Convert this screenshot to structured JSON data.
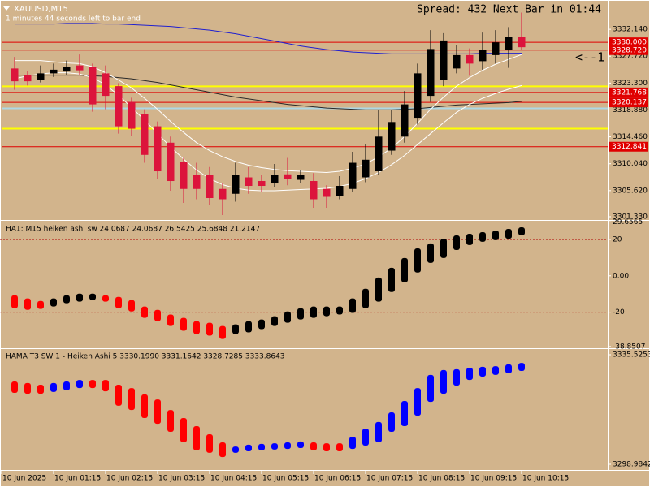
{
  "header": {
    "symbol": "XAUUSD,M15",
    "timer": "1 minutes 44 seconds left to bar end",
    "spread": "Spread: 432 Next Bar in 01:44",
    "annotation": "<--1"
  },
  "chart_data": [
    {
      "type": "candlestick",
      "up_color": "#000000",
      "down_color": "#dc143c",
      "open": [
        null,
        3325.7,
        3324.6,
        3323.8,
        3324.9,
        3325.2,
        3326.2,
        3325.9,
        3324.9,
        3322.8,
        3320.2,
        3318.2,
        3316.2,
        3313.5,
        3310.4,
        3308.2,
        3308.2,
        3305.9,
        3305.1,
        3307.8,
        3307.2,
        3306.8,
        3308.3,
        3307.4,
        3307.2,
        3305.9,
        3304.8,
        3305.9,
        3307.8,
        3308.8,
        3312.2,
        3314.5,
        3317.6,
        3321.2,
        3323.8,
        3325.7,
        3327.9,
        3326.9,
        3327.9,
        3328.7,
        3330.9
      ],
      "high": [
        null,
        3327.6,
        3325.3,
        3326.2,
        3326.5,
        3327.0,
        3328.0,
        3326.5,
        3326.2,
        3323.3,
        3320.9,
        3319.0,
        3317.0,
        3314.5,
        3311.0,
        3310.2,
        3309.5,
        3306.8,
        3310.2,
        3309.5,
        3308.2,
        3310.0,
        3311.0,
        3309.0,
        3308.5,
        3306.5,
        3308.0,
        3312.0,
        3313.2,
        3318.9,
        3318.9,
        3322.0,
        3326.5,
        3332.0,
        3331.5,
        3329.5,
        3329.0,
        3331.6,
        3332.0,
        3332.5,
        3334.9
      ],
      "low": [
        null,
        3322.2,
        3322.9,
        3323.4,
        3324.3,
        3324.6,
        3324.6,
        3318.6,
        3319.0,
        3315.0,
        3314.6,
        3310.2,
        3307.5,
        3305.6,
        3303.6,
        3304.2,
        3303.2,
        3301.6,
        3303.8,
        3305.1,
        3305.4,
        3306.2,
        3306.5,
        3306.8,
        3302.8,
        3302.8,
        3304.2,
        3305.4,
        3307.0,
        3308.2,
        3311.5,
        3313.5,
        3316.5,
        3320.2,
        3322.8,
        3324.9,
        3324.5,
        3325.5,
        3326.5,
        3325.8,
        3328.7
      ],
      "close": [
        null,
        3323.6,
        3323.6,
        3324.9,
        3325.5,
        3326.0,
        3325.4,
        3319.8,
        3321.2,
        3316.2,
        3315.8,
        3311.5,
        3308.8,
        3307.2,
        3305.9,
        3305.9,
        3304.4,
        3304.2,
        3308.2,
        3306.4,
        3306.4,
        3308.2,
        3307.5,
        3308.2,
        3304.2,
        3304.6,
        3306.4,
        3310.2,
        3310.7,
        3314.5,
        3316.9,
        3319.8,
        3324.9,
        3328.9,
        3330.3,
        3327.9,
        3326.5,
        3328.7,
        3330.0,
        3330.9,
        3329.2
      ],
      "series": [
        {
          "color": "#2020d0",
          "values": [
            null,
            3333.0,
            3333.0,
            3333.0,
            3333.0,
            3333.1,
            3333.1,
            3333.1,
            3333.0,
            3333.0,
            3332.9,
            3332.8,
            3332.7,
            3332.6,
            3332.4,
            3332.2,
            3332.0,
            3331.7,
            3331.4,
            3331.0,
            3330.6,
            3330.2,
            3329.8,
            3329.4,
            3329.1,
            3328.8,
            3328.6,
            3328.4,
            3328.3,
            3328.2,
            3328.1,
            3328.1,
            3328.1,
            3328.1,
            3328.1,
            3328.1,
            3328.1,
            3328.2,
            3328.2,
            3328.2,
            3328.2
          ]
        },
        {
          "color": "#2a2a2a",
          "values": [
            null,
            3324.6,
            3324.6,
            3324.6,
            3324.6,
            3324.6,
            3324.6,
            3324.5,
            3324.4,
            3324.2,
            3324.0,
            3323.7,
            3323.4,
            3323.0,
            3322.6,
            3322.2,
            3321.8,
            3321.4,
            3321.0,
            3320.7,
            3320.4,
            3320.1,
            3319.8,
            3319.6,
            3319.4,
            3319.2,
            3319.1,
            3319.0,
            3318.9,
            3318.9,
            3318.9,
            3319.0,
            3319.1,
            3319.3,
            3319.5,
            3319.7,
            3319.8,
            3319.9,
            3320.0,
            3320.1,
            3320.3
          ]
        },
        {
          "color": "#ffffff",
          "values": [
            null,
            3327.0,
            3327.0,
            3327.0,
            3326.8,
            3326.6,
            3326.5,
            3326.0,
            3325.0,
            3323.8,
            3322.5,
            3320.8,
            3319.0,
            3317.0,
            3315.2,
            3313.5,
            3312.2,
            3311.2,
            3310.4,
            3309.8,
            3309.4,
            3309.1,
            3308.9,
            3308.8,
            3308.7,
            3308.6,
            3308.8,
            3309.3,
            3310.0,
            3311.2,
            3312.6,
            3314.5,
            3316.7,
            3319.0,
            3321.0,
            3322.8,
            3324.2,
            3325.4,
            3326.4,
            3327.2,
            3328.0
          ]
        },
        {
          "color": "#ffffff",
          "values": [
            null,
            3324.0,
            3324.5,
            3324.8,
            3325.0,
            3325.0,
            3324.8,
            3324.2,
            3323.0,
            3321.3,
            3319.3,
            3317.2,
            3315.0,
            3312.8,
            3310.8,
            3309.0,
            3307.6,
            3306.6,
            3306.0,
            3305.7,
            3305.6,
            3305.6,
            3305.7,
            3305.8,
            3305.9,
            3306.0,
            3306.3,
            3306.8,
            3307.6,
            3308.6,
            3309.9,
            3311.4,
            3313.2,
            3315.0,
            3316.8,
            3318.5,
            3319.8,
            3320.8,
            3321.6,
            3322.3,
            3322.9
          ]
        }
      ],
      "hlines": [
        {
          "value": 3330,
          "label": "3330.000",
          "color": "#e00000"
        },
        {
          "value": 3328.72,
          "label": "3328.720",
          "color": "#e00000"
        },
        {
          "value": 3321.768,
          "label": "3321.768",
          "color": "#e00000"
        },
        {
          "value": 3320.137,
          "label": "3320.137",
          "color": "#e00000"
        },
        {
          "value": 3312.841,
          "label": "3312.841",
          "color": "#e00000"
        },
        {
          "value": 3322.77,
          "color": "#ffff00"
        },
        {
          "value": 3315.81,
          "color": "#ffff00"
        },
        {
          "value": 3319.15,
          "color": "#add8e6"
        }
      ],
      "ylim": [
        3300.93,
        3336.56
      ],
      "yticks": [
        {
          "value": 3332.14,
          "label": "3332.140"
        },
        {
          "value": 3327.72,
          "label": "3327.720"
        },
        {
          "value": 3323.3,
          "label": "3323.300"
        },
        {
          "value": 3318.88,
          "label": "3318.880"
        },
        {
          "value": 3314.46,
          "label": "3314.460"
        },
        {
          "value": 3310.04,
          "label": "3310.040"
        },
        {
          "value": 3305.62,
          "label": "3305.620"
        },
        {
          "value": 3301.33,
          "label": "3301.330"
        }
      ]
    },
    {
      "type": "heiken_ashi",
      "title": "HA1: M15 heiken ashi sw 24.0687 24.0687 26.5425 25.6848 21.2147",
      "up_color": "#000000",
      "down_color": "#ff0000",
      "open": [
        null,
        -10.7,
        -12.4,
        -13.8,
        -16.9,
        -15.1,
        -14.2,
        -13.3,
        -10.7,
        -11.6,
        -13.3,
        -16.9,
        -18.7,
        -21.3,
        -23.1,
        -24.9,
        -25.8,
        -27.6,
        -32.0,
        -31.1,
        -29.3,
        -27.6,
        -25.8,
        -24.0,
        -23.1,
        -22.2,
        -21.3,
        -20.4,
        -17.8,
        -14.2,
        -8.9,
        -3.6,
        1.8,
        7.1,
        9.8,
        14.2,
        16.9,
        18.7,
        19.6,
        20.4,
        22.2
      ],
      "close": [
        null,
        -17.8,
        -18.7,
        -18.2,
        -12.4,
        -10.7,
        -9.8,
        -9.8,
        -14.2,
        -17.8,
        -19.6,
        -23.1,
        -24.9,
        -27.6,
        -30.2,
        -32.0,
        -32.9,
        -34.7,
        -26.7,
        -24.9,
        -24.0,
        -22.2,
        -19.6,
        -17.8,
        -16.9,
        -16.9,
        -16.9,
        -12.4,
        -7.1,
        -0.9,
        4.4,
        9.8,
        15.1,
        17.8,
        20.4,
        22.2,
        23.1,
        24.0,
        24.9,
        25.8,
        26.7
      ],
      "levels": [
        20,
        -20
      ],
      "level_color": "#b00000",
      "ylim": [
        -38.9,
        29.8
      ],
      "yticks": [
        29.6565,
        20,
        {
          "value": 0,
          "label": "0.00"
        },
        -20,
        -38.8507
      ]
    },
    {
      "type": "heiken_ashi",
      "title": "HAMA T3 SW 1 -  Heiken Ashi 5 3330.1990 3331.1642 3328.7285 3333.8643",
      "up_color": "#0000ff",
      "down_color": "#ff0000",
      "open": [
        null,
        3326.6,
        3326.1,
        3325.5,
        3323.1,
        3323.6,
        3324.4,
        3327.1,
        3327.1,
        3325.5,
        3324.4,
        3322.3,
        3320.6,
        3317.1,
        3314.4,
        3311.7,
        3309.0,
        3306.3,
        3302.8,
        3303.3,
        3303.6,
        3303.9,
        3304.1,
        3304.4,
        3306.3,
        3306.0,
        3306.0,
        3304.1,
        3305.2,
        3306.3,
        3309.8,
        3311.7,
        3315.2,
        3319.8,
        3322.5,
        3325.2,
        3327.1,
        3328.2,
        3328.8,
        3329.3,
        3330.1
      ],
      "close": [
        null,
        3322.8,
        3322.5,
        3322.5,
        3326.1,
        3326.6,
        3327.1,
        3324.4,
        3323.3,
        3318.5,
        3317.1,
        3314.4,
        3312.5,
        3309.8,
        3306.3,
        3303.6,
        3302.8,
        3301.4,
        3304.9,
        3305.5,
        3305.8,
        3306.0,
        3306.3,
        3306.6,
        3303.6,
        3303.3,
        3303.3,
        3308.2,
        3310.9,
        3313.1,
        3316.3,
        3320.1,
        3324.4,
        3328.8,
        3330.4,
        3330.7,
        3331.2,
        3331.5,
        3331.7,
        3332.3,
        3332.8
      ],
      "ylim": [
        3297.36,
        3337.15
      ],
      "yticks": [
        3335.5253,
        3298.9842
      ],
      "categories": [
        "10 Jun 2025",
        null,
        null,
        null,
        "10 Jun 01:15",
        null,
        null,
        null,
        "10 Jun 02:15",
        null,
        null,
        null,
        "10 Jun 03:15",
        null,
        null,
        null,
        "10 Jun 04:15",
        null,
        null,
        null,
        "10 Jun 05:15",
        null,
        null,
        null,
        "10 Jun 06:15",
        null,
        null,
        null,
        "10 Jun 07:15",
        null,
        null,
        null,
        "10 Jun 08:15",
        null,
        null,
        null,
        "10 Jun 09:15",
        null,
        null,
        null,
        "10 Jun 10:15"
      ]
    }
  ]
}
